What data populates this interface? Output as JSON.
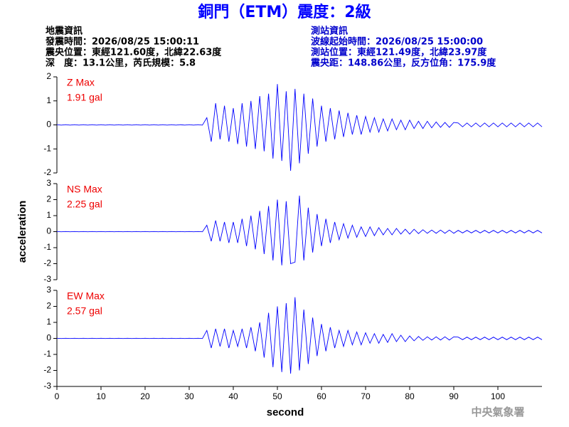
{
  "header": {
    "title": "銅門（ETM）震度：2級",
    "left": [
      "地震資訊",
      "發震時間：2026/08/25 15:00:11",
      "震央位置：東經121.60度，北緯22.63度",
      "深　度：13.1公里，芮氏規模：5.8"
    ],
    "right": [
      "測站資訊",
      "波線起始時間：2026/08/25 15:00:00",
      "測站位置：東經121.49度，北緯23.97度",
      "震央距：148.86公里，反方位角：175.9度"
    ]
  },
  "footer": "中央氣象署",
  "chart_data": [
    {
      "type": "line",
      "label": "Z Max",
      "max_label": "1.91 gal",
      "color": "#0000ff",
      "xlim": [
        0,
        110
      ],
      "ylim": [
        -2,
        2
      ],
      "yticks": [
        -2,
        -1,
        0,
        1,
        2
      ],
      "x": [
        0,
        1,
        2,
        3,
        4,
        5,
        6,
        7,
        8,
        9,
        10,
        11,
        12,
        13,
        14,
        15,
        16,
        17,
        18,
        19,
        20,
        21,
        22,
        23,
        24,
        25,
        26,
        27,
        28,
        29,
        30,
        31,
        32,
        33,
        34,
        35,
        36,
        37,
        38,
        39,
        40,
        41,
        42,
        43,
        44,
        45,
        46,
        47,
        48,
        49,
        50,
        51,
        52,
        53,
        54,
        55,
        56,
        57,
        58,
        59,
        60,
        61,
        62,
        63,
        64,
        65,
        66,
        67,
        68,
        69,
        70,
        71,
        72,
        73,
        74,
        75,
        76,
        77,
        78,
        79,
        80,
        81,
        82,
        83,
        84,
        85,
        86,
        87,
        88,
        89,
        90,
        91,
        92,
        93,
        94,
        95,
        96,
        97,
        98,
        99,
        100,
        101,
        102,
        103,
        104,
        105,
        106,
        107,
        108,
        109,
        110
      ],
      "values": [
        0.01,
        -0.01,
        0.01,
        -0.01,
        0.01,
        -0.01,
        0.01,
        -0.01,
        0.01,
        -0.01,
        0.01,
        -0.01,
        0.01,
        -0.01,
        0.01,
        -0.01,
        0.01,
        -0.01,
        0.01,
        -0.01,
        0.01,
        -0.01,
        0.01,
        -0.01,
        0.01,
        -0.01,
        0.01,
        -0.01,
        0.01,
        -0.01,
        0.01,
        -0.01,
        0.01,
        -0.01,
        0.3,
        -0.7,
        0.9,
        -0.6,
        0.8,
        -0.7,
        0.7,
        -0.8,
        0.9,
        -0.9,
        1.0,
        -1.0,
        1.2,
        -1.1,
        1.3,
        -1.4,
        1.7,
        -1.5,
        1.4,
        -1.91,
        1.5,
        -1.6,
        1.3,
        -1.2,
        1.1,
        -0.9,
        0.8,
        -0.7,
        0.7,
        -0.6,
        0.6,
        -0.5,
        0.5,
        -0.4,
        0.4,
        -0.4,
        0.35,
        -0.3,
        0.3,
        -0.3,
        0.25,
        -0.25,
        0.25,
        -0.2,
        0.2,
        -0.2,
        0.2,
        -0.15,
        0.15,
        -0.15,
        0.15,
        -0.12,
        0.12,
        -0.1,
        0.1,
        -0.1,
        0.1,
        0.08,
        -0.08,
        0.08,
        -0.08,
        0.08,
        -0.08,
        0.08,
        -0.08,
        0.08,
        -0.08,
        0.08,
        -0.08,
        0.08,
        -0.08,
        0.08,
        -0.08,
        0.08,
        -0.08,
        0.08,
        -0.08
      ]
    },
    {
      "type": "line",
      "label": "NS Max",
      "max_label": "2.25 gal",
      "color": "#0000ff",
      "ylabel": "acceleration",
      "xlim": [
        0,
        110
      ],
      "ylim": [
        -3,
        3
      ],
      "yticks": [
        -3,
        -2,
        -1,
        0,
        1,
        2,
        3
      ],
      "x": [
        0,
        1,
        2,
        3,
        4,
        5,
        6,
        7,
        8,
        9,
        10,
        11,
        12,
        13,
        14,
        15,
        16,
        17,
        18,
        19,
        20,
        21,
        22,
        23,
        24,
        25,
        26,
        27,
        28,
        29,
        30,
        31,
        32,
        33,
        34,
        35,
        36,
        37,
        38,
        39,
        40,
        41,
        42,
        43,
        44,
        45,
        46,
        47,
        48,
        49,
        50,
        51,
        52,
        53,
        54,
        55,
        56,
        57,
        58,
        59,
        60,
        61,
        62,
        63,
        64,
        65,
        66,
        67,
        68,
        69,
        70,
        71,
        72,
        73,
        74,
        75,
        76,
        77,
        78,
        79,
        80,
        81,
        82,
        83,
        84,
        85,
        86,
        87,
        88,
        89,
        90,
        91,
        92,
        93,
        94,
        95,
        96,
        97,
        98,
        99,
        100,
        101,
        102,
        103,
        104,
        105,
        106,
        107,
        108,
        109,
        110
      ],
      "values": [
        0.01,
        -0.01,
        0.01,
        -0.01,
        0.01,
        -0.01,
        0.01,
        -0.01,
        0.01,
        -0.01,
        0.01,
        -0.01,
        0.01,
        -0.01,
        0.01,
        -0.01,
        0.01,
        -0.01,
        0.01,
        -0.01,
        0.01,
        -0.01,
        0.01,
        -0.01,
        0.01,
        -0.01,
        0.01,
        -0.01,
        0.01,
        -0.01,
        0.01,
        -0.01,
        0.01,
        -0.01,
        0.4,
        -0.6,
        0.7,
        -0.6,
        0.6,
        -0.7,
        0.6,
        -0.7,
        0.8,
        -0.9,
        1.0,
        -1.1,
        1.3,
        -1.4,
        1.6,
        -1.8,
        2.0,
        -2.1,
        1.9,
        -2.0,
        -1.9,
        2.25,
        -1.8,
        1.5,
        -1.3,
        1.1,
        -0.9,
        0.8,
        -0.7,
        0.6,
        -0.5,
        0.5,
        -0.4,
        0.4,
        -0.35,
        0.3,
        -0.3,
        0.3,
        -0.25,
        0.25,
        -0.2,
        0.2,
        -0.2,
        0.2,
        -0.15,
        0.15,
        -0.15,
        0.15,
        -0.12,
        0.12,
        -0.1,
        0.1,
        -0.1,
        0.1,
        -0.1,
        0.1,
        -0.1,
        0.08,
        -0.08,
        0.08,
        -0.08,
        0.08,
        -0.08,
        0.08,
        -0.08,
        0.08,
        -0.08,
        0.08,
        -0.08,
        0.08,
        -0.08,
        0.08,
        -0.08,
        0.08,
        -0.08,
        0.08,
        -0.08
      ]
    },
    {
      "type": "line",
      "label": "EW Max",
      "max_label": "2.57 gal",
      "color": "#0000ff",
      "xlabel": "second",
      "xlim": [
        0,
        110
      ],
      "xticks": [
        0,
        10,
        20,
        30,
        40,
        50,
        60,
        70,
        80,
        90,
        100
      ],
      "ylim": [
        -3,
        3
      ],
      "yticks": [
        -3,
        -2,
        -1,
        0,
        1,
        2,
        3
      ],
      "x": [
        0,
        1,
        2,
        3,
        4,
        5,
        6,
        7,
        8,
        9,
        10,
        11,
        12,
        13,
        14,
        15,
        16,
        17,
        18,
        19,
        20,
        21,
        22,
        23,
        24,
        25,
        26,
        27,
        28,
        29,
        30,
        31,
        32,
        33,
        34,
        35,
        36,
        37,
        38,
        39,
        40,
        41,
        42,
        43,
        44,
        45,
        46,
        47,
        48,
        49,
        50,
        51,
        52,
        53,
        54,
        55,
        56,
        57,
        58,
        59,
        60,
        61,
        62,
        63,
        64,
        65,
        66,
        67,
        68,
        69,
        70,
        71,
        72,
        73,
        74,
        75,
        76,
        77,
        78,
        79,
        80,
        81,
        82,
        83,
        84,
        85,
        86,
        87,
        88,
        89,
        90,
        91,
        92,
        93,
        94,
        95,
        96,
        97,
        98,
        99,
        100,
        101,
        102,
        103,
        104,
        105,
        106,
        107,
        108,
        109,
        110
      ],
      "values": [
        0.01,
        -0.01,
        0.01,
        -0.01,
        0.01,
        -0.01,
        0.01,
        -0.01,
        0.01,
        -0.01,
        0.01,
        -0.01,
        0.01,
        -0.01,
        0.01,
        -0.01,
        0.01,
        -0.01,
        0.01,
        -0.01,
        0.01,
        -0.01,
        0.01,
        -0.01,
        0.01,
        -0.01,
        0.01,
        -0.01,
        0.01,
        -0.01,
        0.01,
        -0.01,
        0.01,
        -0.01,
        0.5,
        -0.6,
        0.6,
        -0.5,
        0.6,
        -0.6,
        0.5,
        -0.5,
        0.6,
        -0.6,
        0.7,
        -0.8,
        1.0,
        -1.2,
        1.6,
        -1.8,
        2.0,
        -2.1,
        2.2,
        -2.2,
        2.57,
        -2.0,
        1.8,
        -1.6,
        1.3,
        -1.1,
        0.9,
        -0.8,
        0.7,
        -0.6,
        0.5,
        -0.5,
        0.5,
        -0.4,
        0.4,
        -0.4,
        0.35,
        -0.3,
        0.3,
        -0.3,
        0.25,
        -0.25,
        0.3,
        -0.2,
        0.2,
        -0.2,
        0.15,
        -0.15,
        0.12,
        -0.12,
        0.1,
        -0.1,
        0.1,
        -0.1,
        0.1,
        -0.1,
        0.1,
        0.08,
        -0.08,
        0.08,
        -0.08,
        0.08,
        -0.08,
        0.08,
        -0.08,
        0.08,
        -0.08,
        0.08,
        -0.08,
        0.08,
        -0.08,
        0.08,
        -0.08,
        0.08,
        -0.08,
        0.08,
        -0.08
      ]
    }
  ]
}
